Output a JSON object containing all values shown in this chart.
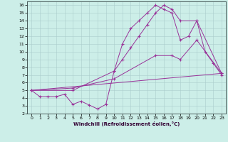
{
  "xlabel": "Windchill (Refroidissement éolien,°C)",
  "bg_color": "#cceee8",
  "line_color": "#993399",
  "xlim": [
    -0.5,
    23.5
  ],
  "ylim": [
    2,
    16.5
  ],
  "xticks": [
    0,
    1,
    2,
    3,
    4,
    5,
    6,
    7,
    8,
    9,
    10,
    11,
    12,
    13,
    14,
    15,
    16,
    17,
    18,
    19,
    20,
    21,
    22,
    23
  ],
  "yticks": [
    2,
    3,
    4,
    5,
    6,
    7,
    8,
    9,
    10,
    11,
    12,
    13,
    14,
    15,
    16
  ],
  "line1_x": [
    0,
    1,
    2,
    3,
    4,
    5,
    6,
    7,
    8,
    9,
    10,
    11,
    12,
    13,
    14,
    15,
    16,
    17,
    18,
    19,
    20,
    21,
    22,
    23
  ],
  "line1_y": [
    5.0,
    4.2,
    4.2,
    4.2,
    4.5,
    3.2,
    3.6,
    3.1,
    2.6,
    3.2,
    7.5,
    11.0,
    13.0,
    14.0,
    15.0,
    16.0,
    15.5,
    15.0,
    11.5,
    12.0,
    14.0,
    10.0,
    8.5,
    7.0
  ],
  "line2_x": [
    0,
    5,
    10,
    11,
    12,
    13,
    14,
    15,
    16,
    17,
    18,
    20,
    23
  ],
  "line2_y": [
    5.0,
    5.0,
    7.5,
    9.0,
    10.5,
    12.0,
    13.5,
    15.0,
    16.0,
    15.5,
    14.0,
    14.0,
    7.2
  ],
  "line3_x": [
    0,
    23
  ],
  "line3_y": [
    5.0,
    7.2
  ],
  "line4_x": [
    0,
    5,
    10,
    15,
    17,
    18,
    20,
    23
  ],
  "line4_y": [
    5.0,
    5.3,
    6.5,
    9.5,
    9.5,
    9.0,
    11.5,
    7.2
  ]
}
